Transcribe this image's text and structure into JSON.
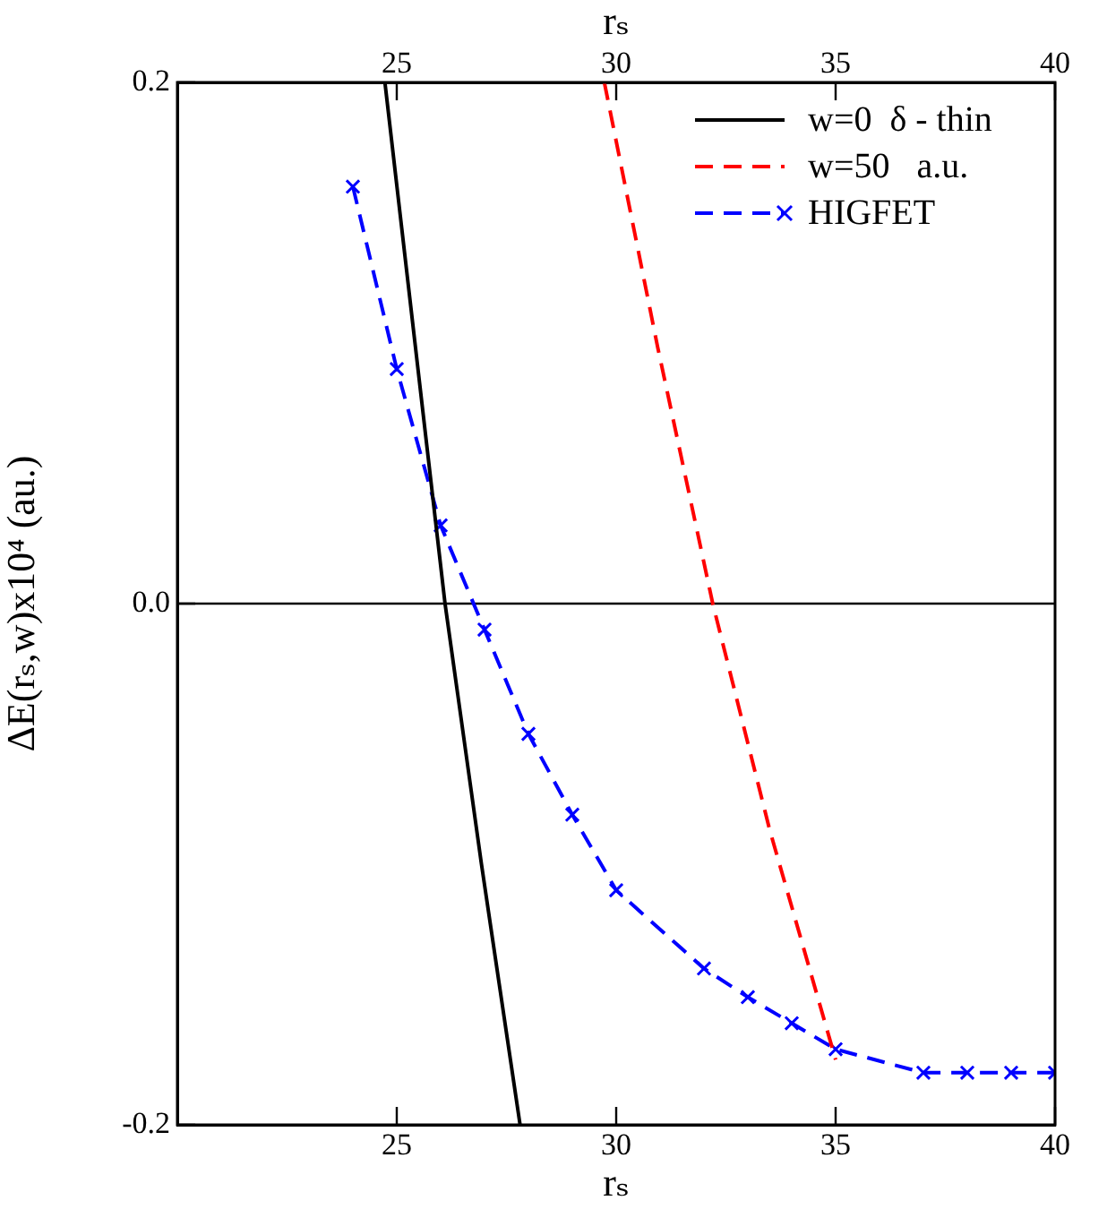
{
  "chart_data": {
    "type": "line",
    "xlabel": "rₛ",
    "x2label": "rₛ",
    "ylabel": "ΔE(rₛ,w)x10⁴ (au.)",
    "xlim": [
      20,
      40
    ],
    "xticks": [
      25,
      30,
      35,
      40
    ],
    "x2lim": [
      20,
      40
    ],
    "x2ticks": [
      25,
      30,
      35,
      40
    ],
    "ylim": [
      -0.2,
      0.2
    ],
    "yticks": [
      -0.2,
      {
        "value": 0,
        "label": "0.0"
      },
      0.2
    ],
    "grid": false,
    "legend": "top right",
    "ref_lines": [
      {
        "axis": "y",
        "value": 0,
        "color": "#000000",
        "line_style": "solid"
      }
    ],
    "series": [
      {
        "name": "w=0  δ - thin",
        "color": "#000000",
        "line_style": "solid",
        "marker": "none",
        "x": [
          24.73,
          26.1,
          26.93,
          27.81
        ],
        "values": [
          0.2,
          0,
          -0.1,
          -0.2
        ]
      },
      {
        "name": "w=50   a.u.",
        "color": "#ff0000",
        "line_style": "dashed",
        "marker": "none",
        "x": [
          29.73,
          30.95,
          32.2,
          33.5,
          35
        ],
        "values": [
          0.2,
          0.098,
          0,
          -0.087,
          -0.175
        ]
      },
      {
        "name": "HIGFET",
        "color": "#0000ff",
        "line_style": "dashed",
        "marker": "cross",
        "x": [
          24,
          25,
          26,
          27,
          28,
          29,
          30,
          32,
          33,
          34,
          35,
          37,
          38,
          39,
          40
        ],
        "values": [
          0.16,
          0.09,
          0.03,
          -0.01,
          -0.05,
          -0.081,
          -0.11,
          -0.14,
          -0.151,
          -0.161,
          -0.171,
          -0.18,
          -0.18,
          -0.18,
          -0.18
        ]
      }
    ]
  }
}
